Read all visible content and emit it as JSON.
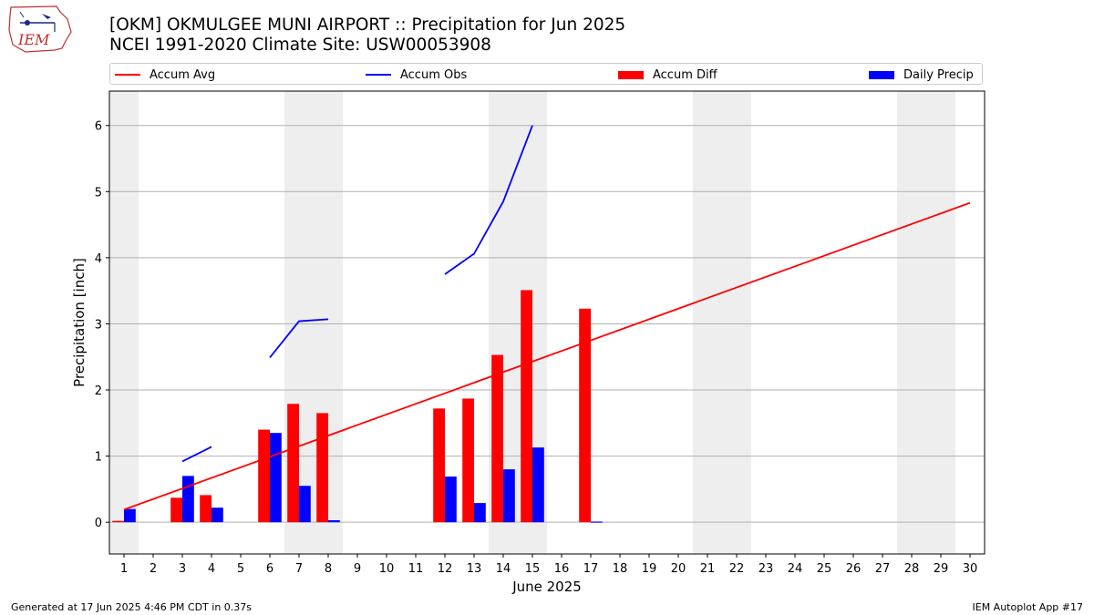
{
  "header": {
    "title_line1": "[OKM] OKMULGEE MUNI AIRPORT :: Precipitation for Jun 2025",
    "title_line2": "NCEI 1991-2020 Climate Site: USW00053908",
    "logo_text": "IEM"
  },
  "footer": {
    "generated": "Generated at 17 Jun 2025 4:46 PM CDT in 0.37s",
    "app": "IEM Autoplot App #17"
  },
  "colors": {
    "avg": "#ff0000",
    "obs": "#0000ff",
    "diff": "#ff0000",
    "daily": "#0000ff",
    "weekend_shade": "#eeeeee",
    "grid": "#b0b0b0"
  },
  "chart_data": {
    "type": "bar",
    "xlabel": "June 2025",
    "ylabel": "Precipitation [inch]",
    "xlim": [
      0.5,
      30.5
    ],
    "ylim": [
      -0.48,
      6.52
    ],
    "yticks": [
      0,
      1,
      2,
      3,
      4,
      5,
      6
    ],
    "grid": "horizontal",
    "legend_position": "top",
    "legend": [
      "Accum Avg",
      "Accum Obs",
      "Accum Diff",
      "Daily Precip"
    ],
    "days": [
      1,
      2,
      3,
      4,
      5,
      6,
      7,
      8,
      9,
      10,
      11,
      12,
      13,
      14,
      15,
      16,
      17,
      18,
      19,
      20,
      21,
      22,
      23,
      24,
      25,
      26,
      27,
      28,
      29,
      30
    ],
    "weekend_days": [
      1,
      7,
      8,
      14,
      15,
      21,
      22,
      28,
      29
    ],
    "accum_avg": {
      "start": [
        1,
        0.19
      ],
      "end": [
        30,
        4.83
      ]
    },
    "accum_obs_segments": [
      [
        [
          3,
          0.92
        ],
        [
          4,
          1.14
        ]
      ],
      [
        [
          6,
          2.49
        ],
        [
          7,
          3.04
        ],
        [
          8,
          3.07
        ]
      ],
      [
        [
          12,
          3.75
        ],
        [
          13,
          4.06
        ],
        [
          14,
          4.85
        ],
        [
          15,
          6.0
        ]
      ]
    ],
    "accum_diff": [
      {
        "day": 1,
        "value": 0.02
      },
      {
        "day": 3,
        "value": 0.37
      },
      {
        "day": 4,
        "value": 0.41
      },
      {
        "day": 6,
        "value": 1.4
      },
      {
        "day": 7,
        "value": 1.79
      },
      {
        "day": 8,
        "value": 1.65
      },
      {
        "day": 12,
        "value": 1.72
      },
      {
        "day": 13,
        "value": 1.87
      },
      {
        "day": 14,
        "value": 2.53
      },
      {
        "day": 15,
        "value": 3.51
      },
      {
        "day": 17,
        "value": 3.23
      }
    ],
    "daily_precip": [
      {
        "day": 1,
        "value": 0.2
      },
      {
        "day": 3,
        "value": 0.7
      },
      {
        "day": 4,
        "value": 0.22
      },
      {
        "day": 6,
        "value": 1.35
      },
      {
        "day": 7,
        "value": 0.55
      },
      {
        "day": 8,
        "value": 0.03
      },
      {
        "day": 12,
        "value": 0.69
      },
      {
        "day": 13,
        "value": 0.29
      },
      {
        "day": 14,
        "value": 0.8
      },
      {
        "day": 15,
        "value": 1.13
      },
      {
        "day": 17,
        "value": 0.01
      }
    ]
  }
}
